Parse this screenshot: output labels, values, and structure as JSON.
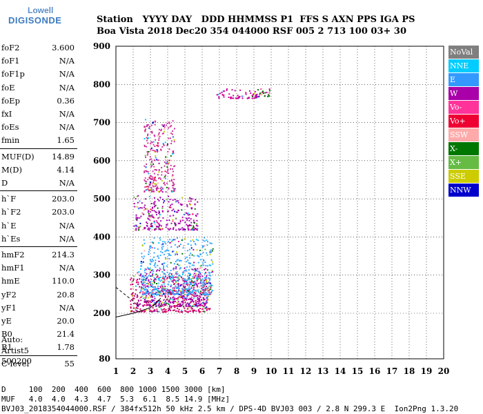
{
  "logo": {
    "line1": "Lowell",
    "line2": "DIGISONDE"
  },
  "header": {
    "line1": "Station   YYYY DAY   DDD HHMMSS P1  FFS S AXN PPS IGA PS",
    "line2": "Boa Vista 2018 Dec20 354 044000 RSF 005 2 713 100 03+ 30"
  },
  "params": [
    {
      "name": "foF2",
      "value": "3.600"
    },
    {
      "name": "foF1",
      "value": "N/A"
    },
    {
      "name": "foF1p",
      "value": "N/A"
    },
    {
      "name": "foE",
      "value": "N/A"
    },
    {
      "name": "foEp",
      "value": "0.36"
    },
    {
      "name": "fxI",
      "value": "N/A"
    },
    {
      "name": "foEs",
      "value": "N/A"
    },
    {
      "name": "fmin",
      "value": "1.65"
    },
    {
      "name": "MUF(D)",
      "value": "14.89"
    },
    {
      "name": "M(D)",
      "value": "4.14"
    },
    {
      "name": "D",
      "value": "N/A"
    },
    {
      "name": "h`F",
      "value": "203.0"
    },
    {
      "name": "h`F2",
      "value": "203.0"
    },
    {
      "name": "h`E",
      "value": "N/A"
    },
    {
      "name": "h`Es",
      "value": "N/A"
    },
    {
      "name": "hmF2",
      "value": "214.3"
    },
    {
      "name": "hmF1",
      "value": "N/A"
    },
    {
      "name": "hmE",
      "value": "110.0"
    },
    {
      "name": "yF2",
      "value": "20.8"
    },
    {
      "name": "yF1",
      "value": "N/A"
    },
    {
      "name": "yE",
      "value": "20.0"
    },
    {
      "name": "B0",
      "value": "21.4"
    },
    {
      "name": "B1",
      "value": "1.78"
    },
    {
      "name": "C-level",
      "value": "55"
    }
  ],
  "auto": {
    "line1": "Auto:",
    "line2": "Artist5",
    "line3": "500200"
  },
  "legend": [
    {
      "label": "NoVal",
      "color": "#7f7f7f"
    },
    {
      "label": "NNE",
      "color": "#00ccff"
    },
    {
      "label": "E",
      "color": "#3399ff"
    },
    {
      "label": "W",
      "color": "#aa00aa"
    },
    {
      "label": "Vo-",
      "color": "#ff3399"
    },
    {
      "label": "Vo+",
      "color": "#ee0033"
    },
    {
      "label": "SSW",
      "color": "#ffaaaa"
    },
    {
      "label": "X-",
      "color": "#007700"
    },
    {
      "label": "X+",
      "color": "#66bb44"
    },
    {
      "label": "SSE",
      "color": "#cccc00"
    },
    {
      "label": "NNW",
      "color": "#0000cc"
    }
  ],
  "footer": {
    "line1": "D     100  200  400  600  800 1000 1500 3000 [km]",
    "line2": "MUF   4.0  4.0  4.3  4.7  5.3  6.1  8.5 14.9 [MHz]",
    "line3": "BVJ03_2018354044000.RSF / 384fx512h 50 kHz 2.5 km / DPS-4D BVJ03 003 / 2.8 N 299.3 E  Ion2Png 1.3.20"
  },
  "chart_data": {
    "type": "scatter",
    "xlim": [
      1,
      20
    ],
    "ylim": [
      80,
      900
    ],
    "xticks": [
      1,
      2,
      3,
      4,
      5,
      6,
      7,
      8,
      9,
      10,
      11,
      12,
      13,
      14,
      15,
      16,
      17,
      18,
      19,
      20
    ],
    "yticks": [
      80,
      200,
      300,
      400,
      500,
      600,
      700,
      800,
      900
    ],
    "grid": true,
    "clusters": [
      {
        "name": "F-trace",
        "color": "#cc0066",
        "x": [
          1.8,
          6.5
        ],
        "y": [
          205,
          300
        ]
      },
      {
        "name": "F-spread-low",
        "color": "#aa00aa",
        "x": [
          2.2,
          6.3
        ],
        "y": [
          220,
          320
        ]
      },
      {
        "name": "F-trace-cyan",
        "color": "#33aaff",
        "x": [
          2.4,
          6.6
        ],
        "y": [
          250,
          400
        ]
      },
      {
        "name": "2F-trace",
        "color": "#aa00aa",
        "x": [
          2.0,
          5.7
        ],
        "y": [
          420,
          510
        ]
      },
      {
        "name": "2F-spread",
        "color": "#cc3399",
        "x": [
          2.6,
          4.4
        ],
        "y": [
          520,
          710
        ]
      },
      {
        "name": "high-trace",
        "color": "#cc0099",
        "x": [
          6.7,
          9.9
        ],
        "y": [
          765,
          790
        ]
      },
      {
        "name": "high-trace-green",
        "color": "#007700",
        "x": [
          9.1,
          9.9
        ],
        "y": [
          770,
          790
        ]
      }
    ],
    "model_curve": {
      "x": [
        1.0,
        1.5,
        2.0,
        2.5,
        3.0,
        3.3,
        3.6
      ],
      "y": [
        190,
        195,
        200,
        207,
        215,
        225,
        240
      ]
    },
    "dashed_curve": {
      "x": [
        1.0,
        1.5,
        2.0,
        2.3
      ],
      "y": [
        268,
        250,
        232,
        218
      ]
    }
  }
}
